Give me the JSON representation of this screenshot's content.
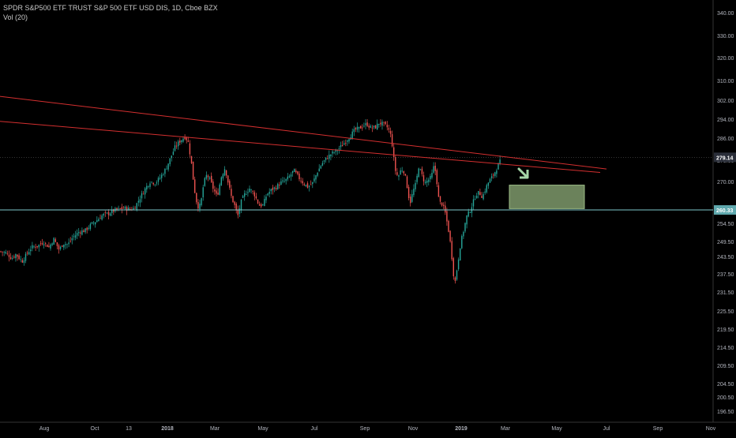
{
  "header": {
    "symbol_line": "SPDR S&P500 ETF TRUST S&P 500 ETF USD DIS, 1D, Cboe BZX",
    "indicator_line": "Vol (20)"
  },
  "colors": {
    "background": "#000000",
    "up_candle": "#26a69a",
    "down_candle": "#ef5350",
    "trendline": "#d32f2f",
    "support_line": "#7ec8cc",
    "target_box": "#8fae7a",
    "arrow": "#a5d6a7",
    "axis_text": "#b2b5be",
    "price_tag": "#2a2e39"
  },
  "icons": {
    "arrow": "arrow-down-right-icon"
  },
  "chart_data": {
    "type": "candlestick",
    "title": "SPDR S&P500 ETF TRUST S&P 500 ETF USD DIS, 1D, Cboe BZX",
    "xlabel": "",
    "ylabel": "",
    "ylim": [
      192,
      345
    ],
    "y_ticks": [
      "340.00",
      "330.00",
      "320.00",
      "310.00",
      "302.00",
      "294.00",
      "286.00",
      "279.14",
      "278.00",
      "270.00",
      "260.33",
      "254.50",
      "249.50",
      "243.50",
      "237.50",
      "231.50",
      "225.50",
      "219.50",
      "214.50",
      "209.50",
      "204.50",
      "200.50",
      "196.50"
    ],
    "x_ticks": [
      "Aug",
      "Oct",
      "13",
      "2018",
      "Mar",
      "May",
      "Jul",
      "Sep",
      "Nov",
      "2019",
      "Mar",
      "May",
      "Jul",
      "Sep",
      "Nov"
    ],
    "last_price": "279.14",
    "support_price": "260.33",
    "series_points": [
      [
        0,
        245.5
      ],
      [
        8,
        245.0
      ],
      [
        15,
        243.0
      ],
      [
        20,
        244.5
      ],
      [
        28,
        242.0
      ],
      [
        35,
        245.0
      ],
      [
        40,
        247.0
      ],
      [
        48,
        247.5
      ],
      [
        55,
        249.0
      ],
      [
        62,
        247.0
      ],
      [
        68,
        250.0
      ],
      [
        75,
        246.0
      ],
      [
        80,
        248.5
      ],
      [
        86,
        248.0
      ],
      [
        92,
        250.5
      ],
      [
        100,
        252.5
      ],
      [
        108,
        253.0
      ],
      [
        115,
        255.0
      ],
      [
        122,
        256.5
      ],
      [
        130,
        258.5
      ],
      [
        137,
        259.0
      ],
      [
        143,
        260.0
      ],
      [
        150,
        260.5
      ],
      [
        157,
        261.0
      ],
      [
        164,
        260.5
      ],
      [
        170,
        261.0
      ],
      [
        178,
        265.0
      ],
      [
        184,
        268.0
      ],
      [
        190,
        270.5
      ],
      [
        197,
        270.0
      ],
      [
        203,
        272.0
      ],
      [
        210,
        275.0
      ],
      [
        216,
        279.0
      ],
      [
        222,
        283.0
      ],
      [
        228,
        285.0
      ],
      [
        234,
        286.5
      ],
      [
        238,
        285.0
      ],
      [
        242,
        278.0
      ],
      [
        246,
        268.0
      ],
      [
        250,
        261.5
      ],
      [
        254,
        262.0
      ],
      [
        258,
        270.0
      ],
      [
        262,
        273.0
      ],
      [
        266,
        271.0
      ],
      [
        270,
        268.0
      ],
      [
        275,
        265.0
      ],
      [
        280,
        272.0
      ],
      [
        285,
        275.5
      ],
      [
        289,
        270.0
      ],
      [
        293,
        265.0
      ],
      [
        297,
        262.0
      ],
      [
        301,
        258.0
      ],
      [
        305,
        263.0
      ],
      [
        310,
        266.0
      ],
      [
        316,
        268.0
      ],
      [
        322,
        266.0
      ],
      [
        328,
        262.0
      ],
      [
        333,
        262.0
      ],
      [
        338,
        266.0
      ],
      [
        344,
        267.5
      ],
      [
        350,
        268.5
      ],
      [
        355,
        270.0
      ],
      [
        360,
        270.5
      ],
      [
        366,
        272.0
      ],
      [
        372,
        274.5
      ],
      [
        378,
        272.0
      ],
      [
        384,
        270.0
      ],
      [
        390,
        268.5
      ],
      [
        396,
        270.0
      ],
      [
        402,
        274.0
      ],
      [
        408,
        277.0
      ],
      [
        414,
        279.0
      ],
      [
        420,
        280.5
      ],
      [
        426,
        281.5
      ],
      [
        432,
        283.0
      ],
      [
        438,
        285.0
      ],
      [
        444,
        287.0
      ],
      [
        450,
        289.0
      ],
      [
        455,
        289.5
      ],
      [
        460,
        290.5
      ],
      [
        465,
        291.0
      ],
      [
        470,
        289.5
      ],
      [
        476,
        290.0
      ],
      [
        480,
        291.5
      ],
      [
        485,
        291.0
      ],
      [
        490,
        290.0
      ],
      [
        494,
        288.0
      ],
      [
        497,
        283.0
      ],
      [
        500,
        275.0
      ],
      [
        504,
        272.0
      ],
      [
        508,
        275.0
      ],
      [
        512,
        274.0
      ],
      [
        516,
        268.0
      ],
      [
        519,
        262.5
      ],
      [
        523,
        267.0
      ],
      [
        527,
        270.0
      ],
      [
        530,
        276.0
      ],
      [
        534,
        273.0
      ],
      [
        538,
        270.0
      ],
      [
        542,
        271.0
      ],
      [
        546,
        272.0
      ],
      [
        550,
        276.5
      ],
      [
        553,
        271.0
      ],
      [
        556,
        263.0
      ],
      [
        560,
        262.5
      ],
      [
        564,
        259.0
      ],
      [
        568,
        253.0
      ],
      [
        571,
        247.0
      ],
      [
        574,
        238.0
      ],
      [
        576,
        234.0
      ],
      [
        579,
        240.0
      ],
      [
        583,
        248.0
      ],
      [
        587,
        253.0
      ],
      [
        591,
        258.0
      ],
      [
        595,
        260.0
      ],
      [
        599,
        263.0
      ],
      [
        603,
        266.0
      ],
      [
        607,
        266.5
      ],
      [
        611,
        265.0
      ],
      [
        615,
        268.0
      ],
      [
        619,
        270.5
      ],
      [
        623,
        272.0
      ],
      [
        627,
        274.0
      ],
      [
        631,
        276.5
      ],
      [
        635,
        278.5
      ]
    ],
    "trendlines": [
      {
        "name": "upper-trendline",
        "points": [
          [
            0,
            300.9
          ],
          [
            634,
            279.5
          ]
        ]
      },
      {
        "name": "lower-trendline",
        "points": [
          [
            0,
            292.0
          ],
          [
            645,
            276.5
          ]
        ]
      }
    ],
    "target_zone": {
      "x_range": [
        645,
        740
      ],
      "y_range": [
        260.8,
        269.2
      ]
    }
  }
}
